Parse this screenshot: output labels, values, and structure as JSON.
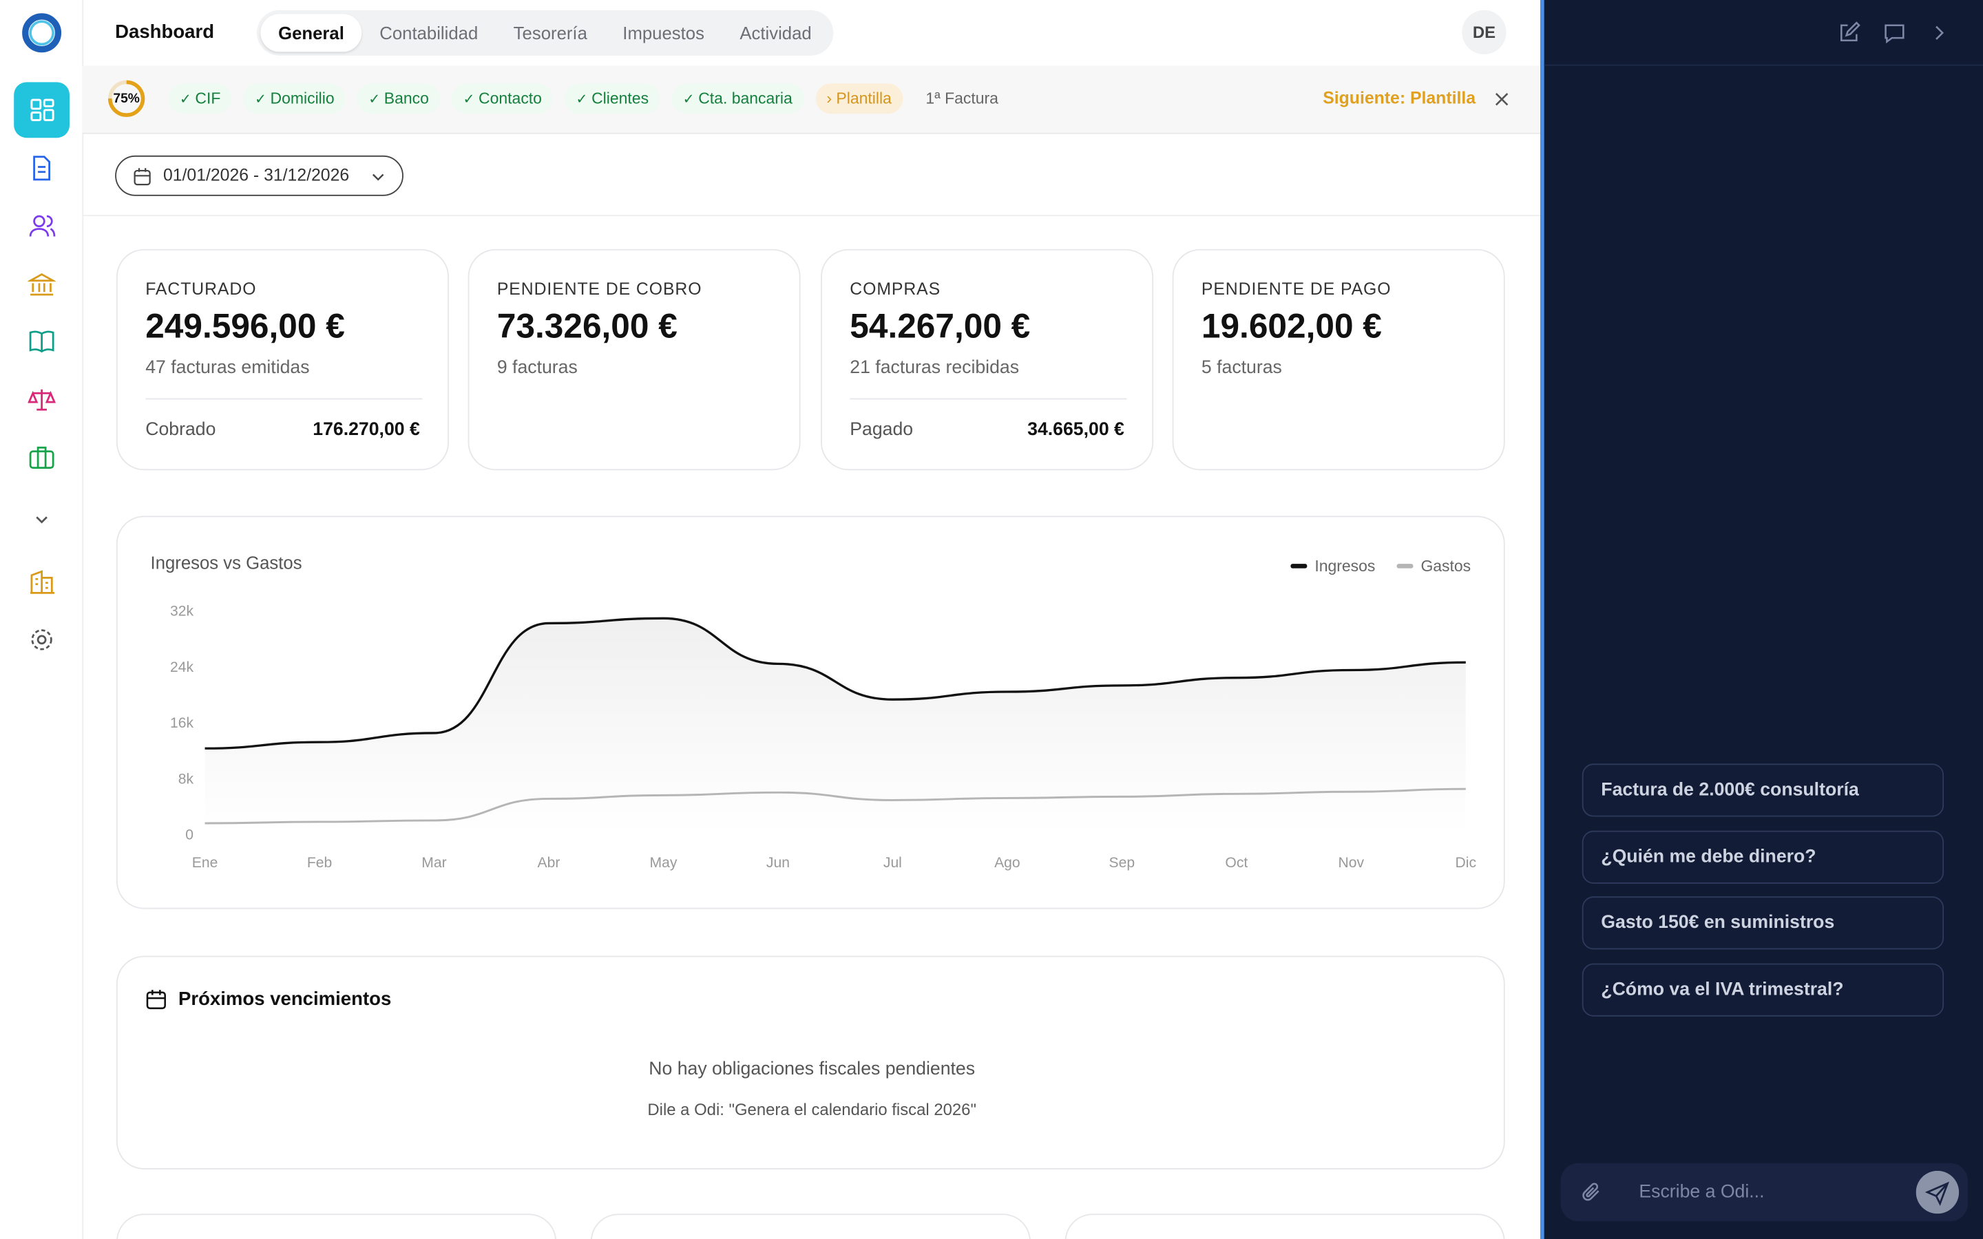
{
  "header": {
    "title": "Dashboard",
    "tabs": [
      {
        "label": "General",
        "active": true
      },
      {
        "label": "Contabilidad",
        "active": false
      },
      {
        "label": "Tesorería",
        "active": false
      },
      {
        "label": "Impuestos",
        "active": false
      },
      {
        "label": "Actividad",
        "active": false
      }
    ],
    "avatar": "DE"
  },
  "onboarding": {
    "progress": 75,
    "progress_label": "75%",
    "steps": [
      {
        "label": "CIF",
        "state": "done"
      },
      {
        "label": "Domicilio",
        "state": "done"
      },
      {
        "label": "Banco",
        "state": "done"
      },
      {
        "label": "Contacto",
        "state": "done"
      },
      {
        "label": "Clientes",
        "state": "done"
      },
      {
        "label": "Cta. bancaria",
        "state": "done"
      },
      {
        "label": "Plantilla",
        "state": "current"
      },
      {
        "label": "1ª Factura",
        "state": "pending"
      }
    ],
    "next": "Siguiente: Plantilla"
  },
  "date_range": "01/01/2026 - 31/12/2026",
  "kpis": [
    {
      "label": "FACTURADO",
      "value": "249.596,00 €",
      "sub": "47 facturas emitidas",
      "footer_label": "Cobrado",
      "footer_value": "176.270,00 €"
    },
    {
      "label": "PENDIENTE DE COBRO",
      "value": "73.326,00 €",
      "sub": "9 facturas"
    },
    {
      "label": "COMPRAS",
      "value": "54.267,00 €",
      "sub": "21 facturas recibidas",
      "footer_label": "Pagado",
      "footer_value": "34.665,00 €"
    },
    {
      "label": "PENDIENTE DE PAGO",
      "value": "19.602,00 €",
      "sub": "5 facturas"
    }
  ],
  "chart_data": {
    "type": "line",
    "title": "Ingresos vs Gastos",
    "categories": [
      "Ene",
      "Feb",
      "Mar",
      "Abr",
      "May",
      "Jun",
      "Jul",
      "Ago",
      "Sep",
      "Oct",
      "Nov",
      "Dic"
    ],
    "series": [
      {
        "name": "Ingresos",
        "color": "#111111",
        "values": [
          12300,
          13200,
          14500,
          30200,
          30900,
          24400,
          19300,
          20400,
          21300,
          22400,
          23500,
          24600
        ]
      },
      {
        "name": "Gastos",
        "color": "#b5b5b5",
        "values": [
          1600,
          1800,
          2000,
          5100,
          5600,
          6000,
          4900,
          5200,
          5400,
          5800,
          6100,
          6500
        ]
      }
    ],
    "ylim": [
      0,
      32000
    ],
    "yticks": [
      0,
      {
        "value": 8000,
        "label": "8k"
      },
      {
        "value": 16000,
        "label": "16k"
      },
      {
        "value": 24000,
        "label": "24k"
      },
      {
        "value": 32000,
        "label": "32k"
      }
    ],
    "legend": "top-right",
    "grid": false
  },
  "upcoming": {
    "title": "Próximos vencimientos",
    "empty": "No hay obligaciones fiscales pendientes",
    "hint": "Dile a Odi: \"Genera el calendario fiscal 2026\""
  },
  "assistant": {
    "suggestions": [
      "Factura de 2.000€ consultoría",
      "¿Quién me debe dinero?",
      "Gasto 150€ en suministros",
      "¿Cómo va el IVA trimestral?"
    ],
    "placeholder": "Escribe a Odi..."
  }
}
